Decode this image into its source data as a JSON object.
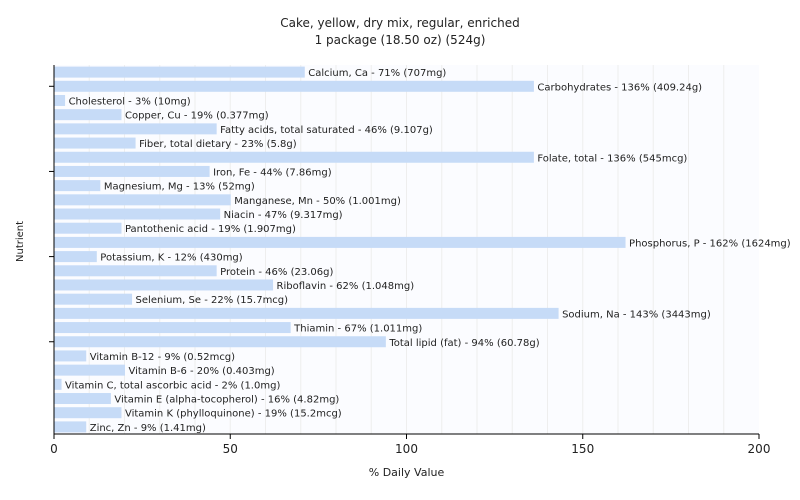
{
  "chart_data": {
    "type": "bar",
    "orientation": "horizontal",
    "title": "Cake, yellow, dry mix, regular, enriched",
    "subtitle": "1 package (18.50 oz) (524g)",
    "xlabel": "% Daily Value",
    "ylabel": "Nutrient",
    "xlim": [
      0,
      200
    ],
    "xticks": [
      "0",
      "50",
      "100",
      "150",
      "200"
    ],
    "bar_color": "#c6dbf7",
    "grid": true,
    "bars": [
      {
        "value": 71,
        "label": "Calcium, Ca - 71% (707mg)"
      },
      {
        "value": 136,
        "label": "Carbohydrates - 136% (409.24g)"
      },
      {
        "value": 3,
        "label": "Cholesterol - 3% (10mg)"
      },
      {
        "value": 19,
        "label": "Copper, Cu - 19% (0.377mg)"
      },
      {
        "value": 46,
        "label": "Fatty acids, total saturated - 46% (9.107g)"
      },
      {
        "value": 23,
        "label": "Fiber, total dietary - 23% (5.8g)"
      },
      {
        "value": 136,
        "label": "Folate, total - 136% (545mcg)"
      },
      {
        "value": 44,
        "label": "Iron, Fe - 44% (7.86mg)"
      },
      {
        "value": 13,
        "label": "Magnesium, Mg - 13% (52mg)"
      },
      {
        "value": 50,
        "label": "Manganese, Mn - 50% (1.001mg)"
      },
      {
        "value": 47,
        "label": "Niacin - 47% (9.317mg)"
      },
      {
        "value": 19,
        "label": "Pantothenic acid - 19% (1.907mg)"
      },
      {
        "value": 162,
        "label": "Phosphorus, P - 162% (1624mg)"
      },
      {
        "value": 12,
        "label": "Potassium, K - 12% (430mg)"
      },
      {
        "value": 46,
        "label": "Protein - 46% (23.06g)"
      },
      {
        "value": 62,
        "label": "Riboflavin - 62% (1.048mg)"
      },
      {
        "value": 22,
        "label": "Selenium, Se - 22% (15.7mcg)"
      },
      {
        "value": 143,
        "label": "Sodium, Na - 143% (3443mg)"
      },
      {
        "value": 67,
        "label": "Thiamin - 67% (1.011mg)"
      },
      {
        "value": 94,
        "label": "Total lipid (fat) - 94% (60.78g)"
      },
      {
        "value": 9,
        "label": "Vitamin B-12 - 9% (0.52mcg)"
      },
      {
        "value": 20,
        "label": "Vitamin B-6 - 20% (0.403mg)"
      },
      {
        "value": 2,
        "label": "Vitamin C, total ascorbic acid - 2% (1.0mg)"
      },
      {
        "value": 16,
        "label": "Vitamin E (alpha-tocopherol) - 16% (4.82mg)"
      },
      {
        "value": 19,
        "label": "Vitamin K (phylloquinone) - 19% (15.2mcg)"
      },
      {
        "value": 9,
        "label": "Zinc, Zn - 9% (1.41mg)"
      }
    ]
  }
}
